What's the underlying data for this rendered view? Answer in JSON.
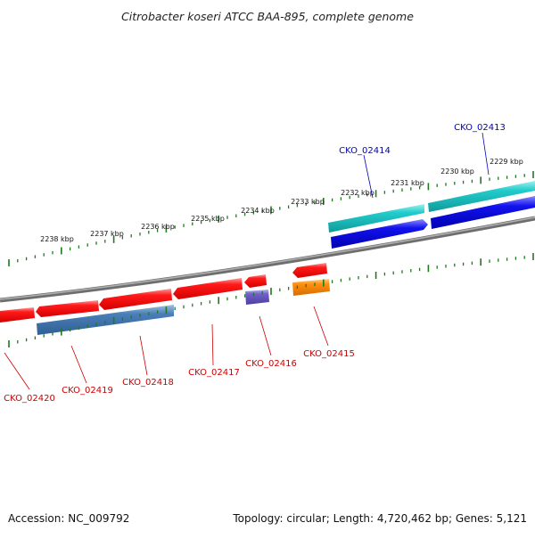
{
  "title": "Citrobacter koseri ATCC BAA-895, complete genome",
  "footer": {
    "accession": "Accession: NC_009792",
    "summary": "Topology: circular; Length: 4,720,462 bp; Genes: 5,121"
  },
  "ticks": [
    "2238 kbp",
    "2237 kbp",
    "2236 kbp",
    "2235 kbp",
    "2234 kbp",
    "2233 kbp",
    "2232 kbp",
    "2231 kbp",
    "2230 kbp",
    "2229 kbp"
  ],
  "genes": {
    "top": [
      "CKO_02414",
      "CKO_02413"
    ],
    "bottom": [
      "CKO_02420",
      "CKO_02419",
      "CKO_02418",
      "CKO_02417",
      "CKO_02416",
      "CKO_02415"
    ]
  },
  "colors": {
    "backbone": "#808080",
    "tick": "#1f7a1f",
    "cds_red": "#ee1111",
    "cds_blue": "#1a1ae6",
    "rna_cyan": "#1fc8c8",
    "rna_steel": "#4a7fb8",
    "rna_purple": "#7060c8",
    "rna_orange": "#ff8c00",
    "label_red": "#cc0000",
    "label_blue": "#0000bb"
  }
}
